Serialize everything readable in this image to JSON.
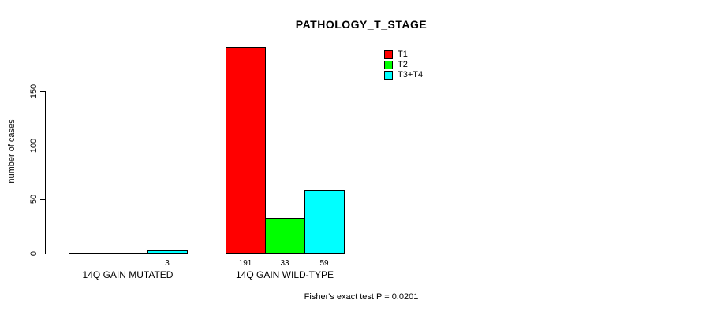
{
  "chart_data": {
    "type": "bar",
    "grouped": true,
    "title": "PATHOLOGY_T_STAGE",
    "xlabel": "",
    "ylabel": "number of cases",
    "categories": [
      "14Q GAIN MUTATED",
      "14Q GAIN WILD-TYPE"
    ],
    "series": [
      {
        "name": "T1",
        "color": "#ff0000",
        "values": [
          0,
          191
        ]
      },
      {
        "name": "T2",
        "color": "#00ff00",
        "values": [
          0,
          33
        ]
      },
      {
        "name": "T3+T4",
        "color": "#00ffff",
        "values": [
          3,
          59
        ]
      }
    ],
    "yticks": [
      0,
      50,
      100,
      150
    ],
    "ylim": [
      0,
      191
    ],
    "grid": false,
    "legend_position": "top-right",
    "bar_border_color": "#000000",
    "axis_color": "#000000",
    "value_labels_shown_for_nonzero_only": true,
    "annotation": "Fisher's exact test P = 0.0201"
  }
}
